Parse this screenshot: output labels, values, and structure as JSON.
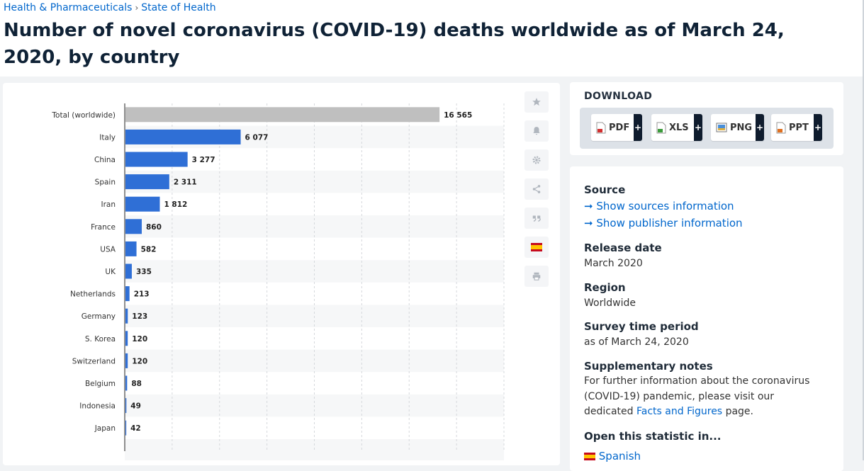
{
  "breadcrumb": {
    "category": "Health & Pharmaceuticals",
    "separator": "›",
    "subcategory": "State of Health"
  },
  "title": "Number of novel coronavirus (COVID-19) deaths worldwide as of March 24, 2020, by country",
  "chart_data": {
    "type": "bar",
    "orientation": "horizontal",
    "categories": [
      "Total (worldwide)",
      "Italy",
      "China",
      "Spain",
      "Iran",
      "France",
      "USA",
      "UK",
      "Netherlands",
      "Germany",
      "S. Korea",
      "Switzerland",
      "Belgium",
      "Indonesia",
      "Japan"
    ],
    "values": [
      16565,
      6077,
      3277,
      2311,
      1812,
      860,
      582,
      335,
      213,
      123,
      120,
      120,
      88,
      49,
      42
    ],
    "value_labels": [
      "16 565",
      "6 077",
      "3 277",
      "2 311",
      "1 812",
      "860",
      "582",
      "335",
      "213",
      "123",
      "120",
      "120",
      "88",
      "49",
      "42"
    ],
    "xlim": [
      0,
      20000
    ],
    "grid": true,
    "colors": {
      "highlight": "#bfbfbf",
      "default": "#2f6fd6"
    }
  },
  "tools": [
    {
      "name": "favorite-icon"
    },
    {
      "name": "bell-icon"
    },
    {
      "name": "settings-icon"
    },
    {
      "name": "share-icon"
    },
    {
      "name": "quote-icon"
    },
    {
      "name": "spanish-flag-icon"
    },
    {
      "name": "print-icon"
    }
  ],
  "download": {
    "title": "DOWNLOAD",
    "buttons": [
      {
        "label": "PDF",
        "plus": "+"
      },
      {
        "label": "XLS",
        "plus": "+"
      },
      {
        "label": "PNG",
        "plus": "+"
      },
      {
        "label": "PPT",
        "plus": "+"
      }
    ]
  },
  "info": {
    "source_label": "Source",
    "show_sources": "Show sources information",
    "show_publisher": "Show publisher information",
    "release_label": "Release date",
    "release_value": "March 2020",
    "region_label": "Region",
    "region_value": "Worldwide",
    "survey_label": "Survey time period",
    "survey_value": "as of March 24, 2020",
    "notes_label": "Supplementary notes",
    "notes_text_before": "For further information about the coronavirus (COVID-19) pandemic, please visit our dedicated",
    "notes_link": "Facts and Figures",
    "notes_text_after": "page.",
    "open_label": "Open this statistic in...",
    "open_spanish": "Spanish",
    "arrow": "➞"
  }
}
